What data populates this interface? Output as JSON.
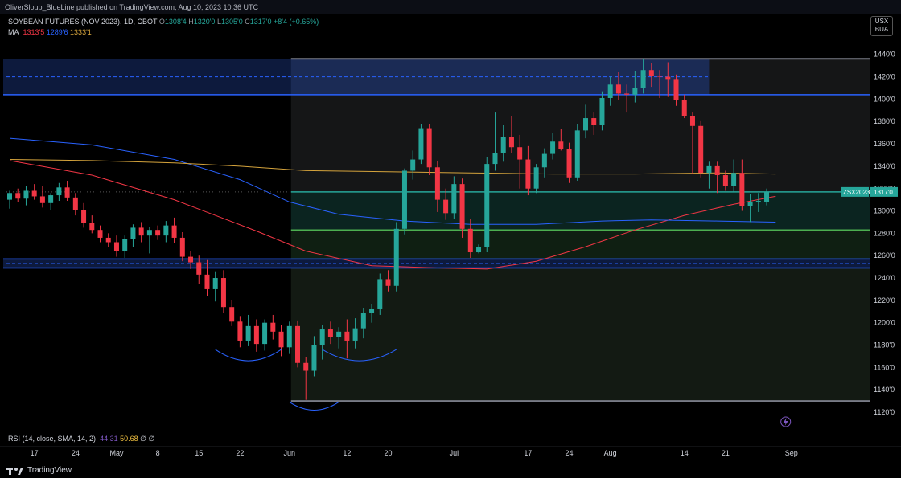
{
  "header": {
    "published": "OliverSloup_BlueLine published on TradingView.com, Aug 10, 2023 10:36 UTC"
  },
  "legend": {
    "symbol": "SOYBEAN FUTURES (NOV 2023), 1D, CBOT",
    "o_label": "O",
    "o_value": "1308'4",
    "h_label": "H",
    "h_value": "1320'0",
    "l_label": "L",
    "l_value": "1305'0",
    "c_label": "C",
    "c_value": "1317'0",
    "change": "+8'4 (+0.65%)",
    "ma_label": "MA",
    "ma_values": [
      "1313'5",
      "1289'6",
      "1333'1"
    ],
    "ma_colors": [
      "#f23645",
      "#2962ff",
      "#d4a33c"
    ],
    "rsi_label": "RSI (14, close, SMA, 14, 2)",
    "rsi_value": "44.31",
    "rsi_ma_value": "50.68",
    "rsi_tail": "∅ ∅"
  },
  "currency": {
    "line1": "USX",
    "line2": "BUA"
  },
  "price_tag": {
    "symbol": "ZSX2023",
    "value": "1317'0"
  },
  "footer": {
    "brand": "TradingView"
  },
  "colors": {
    "up": "#26a69a",
    "down": "#f23645",
    "blue_line": "#2962ff",
    "green_line": "#4caf50"
  },
  "chart_data": {
    "type": "candlestick",
    "ylim": [
      1120,
      1447
    ],
    "y_ticks": [
      1440,
      1420,
      1400,
      1380,
      1360,
      1340,
      1320,
      1300,
      1280,
      1260,
      1240,
      1220,
      1200,
      1180,
      1160,
      1140,
      1120
    ],
    "y_tick_labels": [
      "1440'0",
      "1420'0",
      "1400'0",
      "1380'0",
      "1360'0",
      "1340'0",
      "1320'0",
      "1300'0",
      "1280'0",
      "1260'0",
      "1240'0",
      "1220'0",
      "1200'0",
      "1180'0",
      "1160'0",
      "1140'0",
      "1120'0"
    ],
    "x_range": [
      0,
      105
    ],
    "x_ticks": [
      {
        "i": 3,
        "label": "17"
      },
      {
        "i": 8,
        "label": "24"
      },
      {
        "i": 13,
        "label": "May"
      },
      {
        "i": 18,
        "label": "8"
      },
      {
        "i": 23,
        "label": "15"
      },
      {
        "i": 28,
        "label": "22"
      },
      {
        "i": 34,
        "label": "Jun"
      },
      {
        "i": 41,
        "label": "12"
      },
      {
        "i": 46,
        "label": "20"
      },
      {
        "i": 54,
        "label": "Jul"
      },
      {
        "i": 63,
        "label": "17"
      },
      {
        "i": 68,
        "label": "24"
      },
      {
        "i": 73,
        "label": "Aug"
      },
      {
        "i": 82,
        "label": "14"
      },
      {
        "i": 87,
        "label": "21"
      },
      {
        "i": 95,
        "label": "Sep"
      }
    ],
    "candles": [
      {
        "o": 1310,
        "h": 1318,
        "l": 1302,
        "c": 1316
      },
      {
        "o": 1316,
        "h": 1320,
        "l": 1308,
        "c": 1311
      },
      {
        "o": 1311,
        "h": 1322,
        "l": 1305,
        "c": 1318
      },
      {
        "o": 1318,
        "h": 1324,
        "l": 1310,
        "c": 1313
      },
      {
        "o": 1313,
        "h": 1322,
        "l": 1303,
        "c": 1307
      },
      {
        "o": 1307,
        "h": 1316,
        "l": 1301,
        "c": 1314
      },
      {
        "o": 1314,
        "h": 1325,
        "l": 1309,
        "c": 1321
      },
      {
        "o": 1321,
        "h": 1327,
        "l": 1309,
        "c": 1312
      },
      {
        "o": 1312,
        "h": 1316,
        "l": 1296,
        "c": 1301
      },
      {
        "o": 1301,
        "h": 1307,
        "l": 1285,
        "c": 1289
      },
      {
        "o": 1289,
        "h": 1296,
        "l": 1280,
        "c": 1283
      },
      {
        "o": 1283,
        "h": 1287,
        "l": 1272,
        "c": 1276
      },
      {
        "o": 1276,
        "h": 1280,
        "l": 1268,
        "c": 1272
      },
      {
        "o": 1272,
        "h": 1278,
        "l": 1259,
        "c": 1264
      },
      {
        "o": 1264,
        "h": 1278,
        "l": 1258,
        "c": 1275
      },
      {
        "o": 1275,
        "h": 1288,
        "l": 1268,
        "c": 1285
      },
      {
        "o": 1285,
        "h": 1290,
        "l": 1272,
        "c": 1278
      },
      {
        "o": 1278,
        "h": 1286,
        "l": 1262,
        "c": 1283
      },
      {
        "o": 1283,
        "h": 1287,
        "l": 1274,
        "c": 1278
      },
      {
        "o": 1278,
        "h": 1291,
        "l": 1272,
        "c": 1287
      },
      {
        "o": 1287,
        "h": 1294,
        "l": 1271,
        "c": 1276
      },
      {
        "o": 1276,
        "h": 1281,
        "l": 1255,
        "c": 1259
      },
      {
        "o": 1259,
        "h": 1264,
        "l": 1248,
        "c": 1254
      },
      {
        "o": 1254,
        "h": 1260,
        "l": 1235,
        "c": 1243
      },
      {
        "o": 1243,
        "h": 1256,
        "l": 1224,
        "c": 1230
      },
      {
        "o": 1230,
        "h": 1246,
        "l": 1219,
        "c": 1240
      },
      {
        "o": 1240,
        "h": 1247,
        "l": 1209,
        "c": 1214
      },
      {
        "o": 1214,
        "h": 1220,
        "l": 1197,
        "c": 1201
      },
      {
        "o": 1201,
        "h": 1206,
        "l": 1178,
        "c": 1184
      },
      {
        "o": 1184,
        "h": 1207,
        "l": 1179,
        "c": 1197
      },
      {
        "o": 1197,
        "h": 1203,
        "l": 1174,
        "c": 1181
      },
      {
        "o": 1181,
        "h": 1203,
        "l": 1175,
        "c": 1200
      },
      {
        "o": 1200,
        "h": 1207,
        "l": 1185,
        "c": 1192
      },
      {
        "o": 1192,
        "h": 1198,
        "l": 1170,
        "c": 1178
      },
      {
        "o": 1178,
        "h": 1201,
        "l": 1172,
        "c": 1197
      },
      {
        "o": 1197,
        "h": 1202,
        "l": 1160,
        "c": 1164
      },
      {
        "o": 1164,
        "h": 1169,
        "l": 1131,
        "c": 1157
      },
      {
        "o": 1157,
        "h": 1188,
        "l": 1152,
        "c": 1180
      },
      {
        "o": 1180,
        "h": 1198,
        "l": 1167,
        "c": 1194
      },
      {
        "o": 1194,
        "h": 1201,
        "l": 1181,
        "c": 1187
      },
      {
        "o": 1187,
        "h": 1196,
        "l": 1177,
        "c": 1192
      },
      {
        "o": 1192,
        "h": 1203,
        "l": 1168,
        "c": 1184
      },
      {
        "o": 1184,
        "h": 1204,
        "l": 1177,
        "c": 1195
      },
      {
        "o": 1195,
        "h": 1213,
        "l": 1186,
        "c": 1209
      },
      {
        "o": 1209,
        "h": 1217,
        "l": 1200,
        "c": 1212
      },
      {
        "o": 1212,
        "h": 1244,
        "l": 1207,
        "c": 1239
      },
      {
        "o": 1239,
        "h": 1247,
        "l": 1228,
        "c": 1233
      },
      {
        "o": 1233,
        "h": 1290,
        "l": 1228,
        "c": 1284
      },
      {
        "o": 1284,
        "h": 1338,
        "l": 1279,
        "c": 1336
      },
      {
        "o": 1336,
        "h": 1354,
        "l": 1328,
        "c": 1346
      },
      {
        "o": 1346,
        "h": 1378,
        "l": 1342,
        "c": 1374
      },
      {
        "o": 1374,
        "h": 1378,
        "l": 1332,
        "c": 1339
      },
      {
        "o": 1339,
        "h": 1345,
        "l": 1299,
        "c": 1310
      },
      {
        "o": 1310,
        "h": 1320,
        "l": 1292,
        "c": 1298
      },
      {
        "o": 1298,
        "h": 1331,
        "l": 1293,
        "c": 1324
      },
      {
        "o": 1324,
        "h": 1329,
        "l": 1276,
        "c": 1284
      },
      {
        "o": 1284,
        "h": 1293,
        "l": 1258,
        "c": 1263
      },
      {
        "o": 1263,
        "h": 1270,
        "l": 1262,
        "c": 1268
      },
      {
        "o": 1268,
        "h": 1348,
        "l": 1263,
        "c": 1342
      },
      {
        "o": 1342,
        "h": 1388,
        "l": 1336,
        "c": 1352
      },
      {
        "o": 1352,
        "h": 1377,
        "l": 1344,
        "c": 1366
      },
      {
        "o": 1366,
        "h": 1385,
        "l": 1352,
        "c": 1357
      },
      {
        "o": 1357,
        "h": 1368,
        "l": 1320,
        "c": 1346
      },
      {
        "o": 1346,
        "h": 1358,
        "l": 1314,
        "c": 1320
      },
      {
        "o": 1320,
        "h": 1342,
        "l": 1316,
        "c": 1339
      },
      {
        "o": 1339,
        "h": 1356,
        "l": 1330,
        "c": 1351
      },
      {
        "o": 1351,
        "h": 1370,
        "l": 1346,
        "c": 1362
      },
      {
        "o": 1362,
        "h": 1373,
        "l": 1354,
        "c": 1355
      },
      {
        "o": 1355,
        "h": 1361,
        "l": 1325,
        "c": 1330
      },
      {
        "o": 1330,
        "h": 1378,
        "l": 1327,
        "c": 1372
      },
      {
        "o": 1372,
        "h": 1395,
        "l": 1365,
        "c": 1383
      },
      {
        "o": 1383,
        "h": 1388,
        "l": 1368,
        "c": 1377
      },
      {
        "o": 1377,
        "h": 1407,
        "l": 1372,
        "c": 1401
      },
      {
        "o": 1401,
        "h": 1420,
        "l": 1394,
        "c": 1413
      },
      {
        "o": 1413,
        "h": 1424,
        "l": 1399,
        "c": 1405
      },
      {
        "o": 1405,
        "h": 1413,
        "l": 1388,
        "c": 1404
      },
      {
        "o": 1404,
        "h": 1425,
        "l": 1397,
        "c": 1410
      },
      {
        "o": 1410,
        "h": 1436,
        "l": 1405,
        "c": 1426
      },
      {
        "o": 1426,
        "h": 1432,
        "l": 1411,
        "c": 1421
      },
      {
        "o": 1421,
        "h": 1426,
        "l": 1401,
        "c": 1420
      },
      {
        "o": 1420,
        "h": 1433,
        "l": 1402,
        "c": 1418
      },
      {
        "o": 1418,
        "h": 1422,
        "l": 1394,
        "c": 1399
      },
      {
        "o": 1399,
        "h": 1404,
        "l": 1383,
        "c": 1385
      },
      {
        "o": 1385,
        "h": 1388,
        "l": 1333,
        "c": 1376
      },
      {
        "o": 1376,
        "h": 1381,
        "l": 1330,
        "c": 1334
      },
      {
        "o": 1334,
        "h": 1344,
        "l": 1320,
        "c": 1340
      },
      {
        "o": 1340,
        "h": 1344,
        "l": 1316,
        "c": 1332
      },
      {
        "o": 1332,
        "h": 1336,
        "l": 1318,
        "c": 1322
      },
      {
        "o": 1322,
        "h": 1346,
        "l": 1317,
        "c": 1334
      },
      {
        "o": 1334,
        "h": 1346,
        "l": 1300,
        "c": 1304
      },
      {
        "o": 1304,
        "h": 1315,
        "l": 1290,
        "c": 1308
      },
      {
        "o": 1308,
        "h": 1316,
        "l": 1299,
        "c": 1309
      },
      {
        "o": 1308,
        "h": 1320,
        "l": 1305,
        "c": 1317
      }
    ],
    "ma_series": [
      {
        "name": "MA 1313'5",
        "color": "#f23645",
        "points": [
          [
            0,
            1345
          ],
          [
            10,
            1332
          ],
          [
            20,
            1310
          ],
          [
            30,
            1282
          ],
          [
            36,
            1264
          ],
          [
            44,
            1251
          ],
          [
            52,
            1249
          ],
          [
            58,
            1248
          ],
          [
            64,
            1255
          ],
          [
            70,
            1268
          ],
          [
            76,
            1283
          ],
          [
            82,
            1296
          ],
          [
            88,
            1306
          ],
          [
            93,
            1313
          ]
        ]
      },
      {
        "name": "MA 1289'6",
        "color": "#2962ff",
        "points": [
          [
            0,
            1365
          ],
          [
            10,
            1359
          ],
          [
            20,
            1346
          ],
          [
            28,
            1328
          ],
          [
            34,
            1308
          ],
          [
            40,
            1297
          ],
          [
            48,
            1291
          ],
          [
            56,
            1288
          ],
          [
            64,
            1288
          ],
          [
            72,
            1291
          ],
          [
            78,
            1292
          ],
          [
            86,
            1291
          ],
          [
            93,
            1290
          ]
        ]
      },
      {
        "name": "MA 1333'1",
        "color": "#d4a33c",
        "points": [
          [
            0,
            1346
          ],
          [
            10,
            1345
          ],
          [
            20,
            1343
          ],
          [
            28,
            1340
          ],
          [
            36,
            1336
          ],
          [
            46,
            1335
          ],
          [
            56,
            1334
          ],
          [
            66,
            1333
          ],
          [
            76,
            1333
          ],
          [
            86,
            1334
          ],
          [
            93,
            1333
          ]
        ]
      }
    ],
    "horizontal_lines": [
      {
        "y": 1317,
        "color": "#26a69a",
        "label": "ZSX2023"
      },
      {
        "y": 1283,
        "color": "#4caf50"
      },
      {
        "y": 1257,
        "color": "#2962ff"
      },
      {
        "y": 1249,
        "color": "#2962ff"
      },
      {
        "y": 1436,
        "color": "#787b86"
      },
      {
        "y": 1404,
        "color": "#2962ff"
      },
      {
        "y": 1130,
        "color": "#787b86"
      }
    ],
    "zones": [
      {
        "x0": 0,
        "x1": 0,
        "y0": 1404,
        "y1": 1436,
        "color": "#2962ff"
      },
      {
        "x0": 0,
        "x1": 0,
        "y0": 1249,
        "y1": 1257,
        "color": "#2962ff"
      }
    ]
  }
}
